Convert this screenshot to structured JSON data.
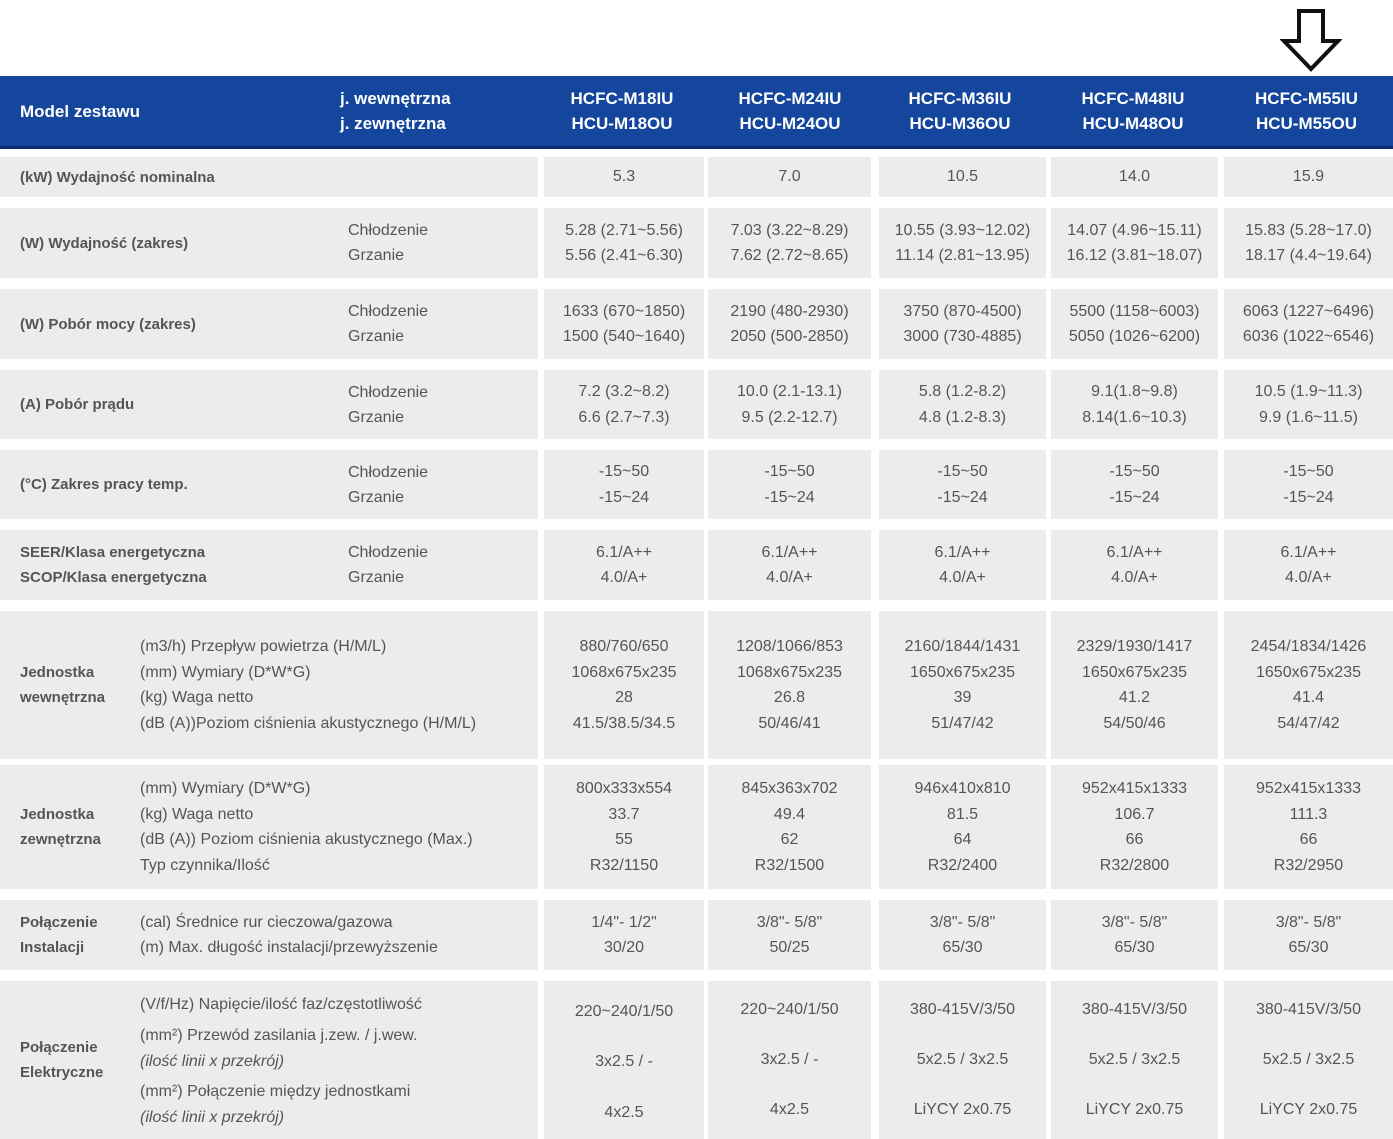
{
  "header": {
    "model_label": "Model zestawu",
    "indoor_label": "j. wewnętrzna",
    "outdoor_label": "j. zewnętrzna",
    "models": [
      {
        "indoor": "HCFC-M18IU",
        "outdoor": "HCU-M18OU"
      },
      {
        "indoor": "HCFC-M24IU",
        "outdoor": "HCU-M24OU"
      },
      {
        "indoor": "HCFC-M36IU",
        "outdoor": "HCU-M36OU"
      },
      {
        "indoor": "HCFC-M48IU",
        "outdoor": "HCU-M48OU"
      },
      {
        "indoor": "HCFC-M55IU",
        "outdoor": "HCU-M55OU"
      }
    ]
  },
  "marker_icon": "arrow-down-outline-icon",
  "colors": {
    "header_bg": "#13469c",
    "cell_bg": "#ececec"
  },
  "rows": {
    "nominal": {
      "label": "(kW) Wydajność nominalna",
      "values": [
        "5.3",
        "7.0",
        "10.5",
        "14.0",
        "15.9"
      ]
    },
    "capacity": {
      "label": "(W) Wydajność (zakres)",
      "sub": [
        "Chłodzenie",
        "Grzanie"
      ],
      "values": [
        [
          "5.28 (2.71~5.56)",
          "5.56 (2.41~6.30)"
        ],
        [
          "7.03 (3.22~8.29)",
          "7.62 (2.72~8.65)"
        ],
        [
          "10.55 (3.93~12.02)",
          "11.14 (2.81~13.95)"
        ],
        [
          "14.07 (4.96~15.11)",
          "16.12 (3.81~18.07)"
        ],
        [
          "15.83 (5.28~17.0)",
          "18.17 (4.4~19.64)"
        ]
      ]
    },
    "power": {
      "label": "(W) Pobór mocy (zakres)",
      "sub": [
        "Chłodzenie",
        "Grzanie"
      ],
      "values": [
        [
          "1633 (670~1850)",
          "1500 (540~1640)"
        ],
        [
          "2190 (480-2930)",
          "2050 (500-2850)"
        ],
        [
          "3750 (870-4500)",
          "3000 (730-4885)"
        ],
        [
          "5500 (1158~6003)",
          "5050 (1026~6200)"
        ],
        [
          "6063 (1227~6496)",
          "6036 (1022~6546)"
        ]
      ]
    },
    "current": {
      "label": "(A) Pobór prądu",
      "sub": [
        "Chłodzenie",
        "Grzanie"
      ],
      "values": [
        [
          "7.2 (3.2~8.2)",
          "6.6 (2.7~7.3)"
        ],
        [
          "10.0 (2.1-13.1)",
          "9.5 (2.2-12.7)"
        ],
        [
          "5.8 (1.2-8.2)",
          "4.8 (1.2-8.3)"
        ],
        [
          "9.1(1.8~9.8)",
          "8.14(1.6~10.3)"
        ],
        [
          "10.5 (1.9~11.3)",
          "9.9 (1.6~11.5)"
        ]
      ]
    },
    "temp": {
      "label": "(°C) Zakres pracy temp.",
      "sub": [
        "Chłodzenie",
        "Grzanie"
      ],
      "values": [
        [
          "-15~50",
          "-15~24"
        ],
        [
          "-15~50",
          "-15~24"
        ],
        [
          "-15~50",
          "-15~24"
        ],
        [
          "-15~50",
          "-15~24"
        ],
        [
          "-15~50",
          "-15~24"
        ]
      ]
    },
    "seer": {
      "label": [
        "SEER/Klasa energetyczna",
        "SCOP/Klasa energetyczna"
      ],
      "sub": [
        "Chłodzenie",
        "Grzanie"
      ],
      "values": [
        [
          "6.1/A++",
          "4.0/A+"
        ],
        [
          "6.1/A++",
          "4.0/A+"
        ],
        [
          "6.1/A++",
          "4.0/A+"
        ],
        [
          "6.1/A++",
          "4.0/A+"
        ],
        [
          "6.1/A++",
          "4.0/A+"
        ]
      ]
    },
    "indoor_unit": {
      "label": [
        "Jednostka",
        "wewnętrzna"
      ],
      "params": [
        "(m3/h) Przepływ powietrza (H/M/L)",
        "(mm) Wymiary (D*W*G)",
        "(kg) Waga netto",
        "(dB (A))Poziom ciśnienia akustycznego (H/M/L)"
      ],
      "values": [
        [
          "880/760/650",
          "1068x675x235",
          "28",
          "41.5/38.5/34.5"
        ],
        [
          "1208/1066/853",
          "1068x675x235",
          "26.8",
          "50/46/41"
        ],
        [
          "2160/1844/1431",
          "1650x675x235",
          "39",
          "51/47/42"
        ],
        [
          "2329/1930/1417",
          "1650x675x235",
          "41.2",
          "54/50/46"
        ],
        [
          "2454/1834/1426",
          "1650x675x235",
          "41.4",
          "54/47/42"
        ]
      ]
    },
    "outdoor_unit": {
      "label": [
        "Jednostka",
        "zewnętrzna"
      ],
      "params": [
        "(mm) Wymiary (D*W*G)",
        "(kg) Waga netto",
        "(dB (A)) Poziom ciśnienia akustycznego (Max.)",
        "Typ czynnika/Ilość"
      ],
      "values": [
        [
          "800x333x554",
          "33.7",
          "55",
          "R32/1150"
        ],
        [
          "845x363x702",
          "49.4",
          "62",
          "R32/1500"
        ],
        [
          "946x410x810",
          "81.5",
          "64",
          "R32/2400"
        ],
        [
          "952x415x1333",
          "106.7",
          "66",
          "R32/2800"
        ],
        [
          "952x415x1333",
          "111.3",
          "66",
          "R32/2950"
        ]
      ]
    },
    "installation": {
      "label": [
        "Połączenie",
        "Instalacji"
      ],
      "params": [
        "(cal) Średnice rur cieczowa/gazowa",
        "(m) Max. długość instalacji/przewyższenie"
      ],
      "values": [
        [
          "1/4\"- 1/2\"",
          "30/20"
        ],
        [
          "3/8\"- 5/8\"",
          "50/25"
        ],
        [
          "3/8\"- 5/8\"",
          "65/30"
        ],
        [
          "3/8\"- 5/8\"",
          "65/30"
        ],
        [
          "3/8\"- 5/8\"",
          "65/30"
        ]
      ]
    },
    "electrical": {
      "label": [
        "Połączenie",
        "Elektryczne"
      ],
      "params": [
        "(V/f/Hz) Napięcie/ilość faz/częstotliwość",
        "(mm²) Przewód zasilania j.zew. / j.wew.",
        "(ilość linii x przekrój)",
        "(mm²) Połączenie między jednostkami",
        "(ilość linii x przekrój)"
      ],
      "values": [
        [
          "220~240/1/50",
          "3x2.5 / -",
          "4x2.5"
        ],
        [
          "220~240/1/50",
          "3x2.5 / -",
          "4x2.5"
        ],
        [
          "380-415V/3/50",
          "5x2.5 / 3x2.5",
          "LiYCY 2x0.75"
        ],
        [
          "380-415V/3/50",
          "5x2.5 / 3x2.5",
          "LiYCY 2x0.75"
        ],
        [
          "380-415V/3/50",
          "5x2.5 / 3x2.5",
          "LiYCY 2x0.75"
        ]
      ]
    }
  }
}
